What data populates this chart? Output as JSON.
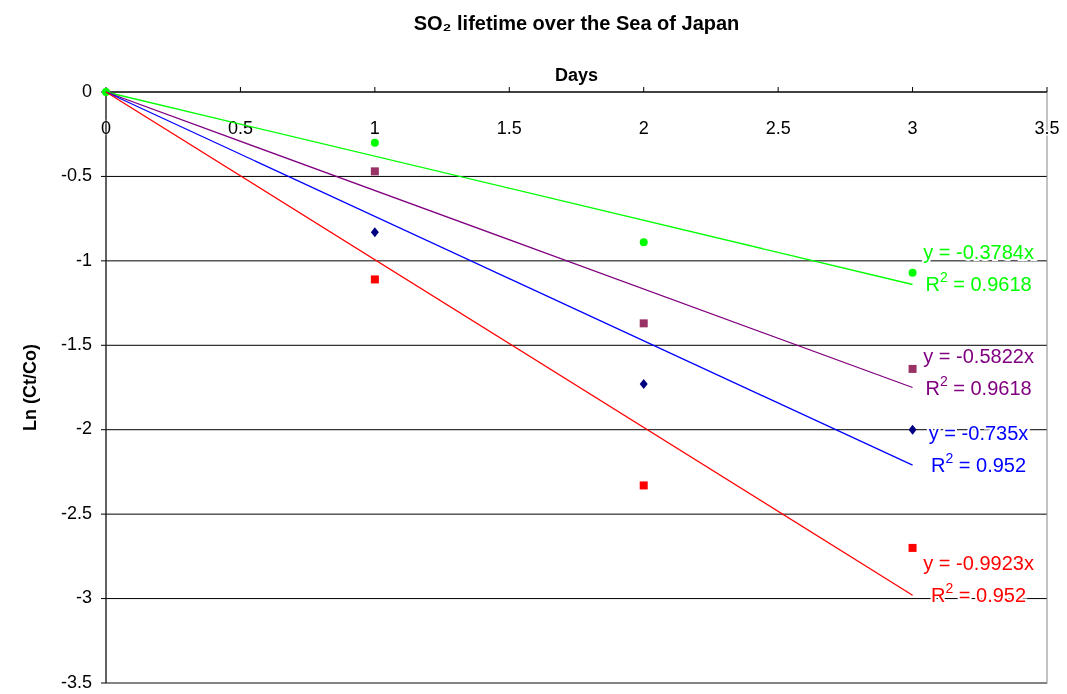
{
  "chart_data": {
    "type": "scatter",
    "title": "SO₂ lifetime over the Sea of Japan",
    "xlabel": "Days",
    "ylabel": "Ln (Ct/Co)",
    "xlim": [
      0,
      3.5
    ],
    "xticks": [
      0,
      0.5,
      1,
      1.5,
      2,
      2.5,
      3,
      3.5
    ],
    "ylim": [
      -3.5,
      0
    ],
    "yticks": [
      0,
      -0.5,
      -1,
      -1.5,
      -2,
      -2.5,
      -3,
      -3.5
    ],
    "grid": "y",
    "series": [
      {
        "color": "#00ff00",
        "marker": "circle",
        "x": [
          0,
          1,
          2,
          3
        ],
        "values": [
          0,
          -0.3,
          -0.89,
          -1.07
        ]
      },
      {
        "color": "#993366",
        "marker": "square",
        "x": [
          1,
          2,
          3
        ],
        "values": [
          -0.47,
          -1.37,
          -1.64
        ]
      },
      {
        "color": "#000080",
        "marker": "diamond",
        "x": [
          1,
          2,
          3
        ],
        "values": [
          -0.83,
          -1.73,
          -2.0
        ]
      },
      {
        "color": "#ff0000",
        "marker": "square",
        "x": [
          1,
          2,
          3
        ],
        "values": [
          -1.11,
          -2.33,
          -2.7
        ]
      },
      {
        "type": "line",
        "color": "#00ff00",
        "marker": "none",
        "x": [
          0,
          3
        ],
        "values": [
          0,
          -1.14
        ]
      },
      {
        "type": "line",
        "color": "#800080",
        "marker": "none",
        "x": [
          0,
          3
        ],
        "values": [
          0,
          -1.75
        ]
      },
      {
        "type": "line",
        "color": "#0000ff",
        "marker": "none",
        "x": [
          0,
          3
        ],
        "values": [
          0,
          -2.21
        ]
      },
      {
        "type": "line",
        "color": "#ff0000",
        "marker": "none",
        "x": [
          0,
          3
        ],
        "values": [
          0,
          -2.98
        ]
      }
    ],
    "annotations": [
      "y = -0.3784x",
      "R$^{2}$ = 0.9618",
      "y = -0.5822x",
      "R$^{2}$ = 0.9618",
      "y = -0.735x",
      "R$^{2}$ = 0.952",
      "y = -0.9923x",
      "R$^{2}$ = 0.952"
    ]
  }
}
